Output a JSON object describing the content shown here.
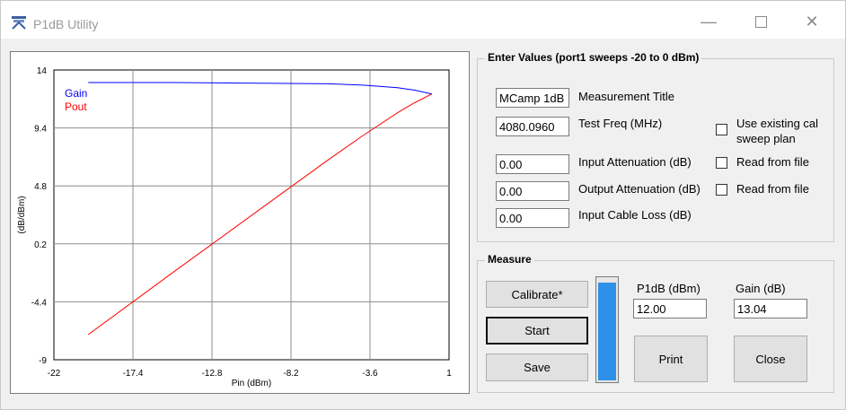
{
  "window": {
    "title": "P1dB Utility"
  },
  "chart_data": {
    "type": "line",
    "xlabel": "Pin (dBm)",
    "ylabel": "(dB/dBm)",
    "xlim": [
      -22,
      1
    ],
    "ylim": [
      -9,
      14
    ],
    "xticks": [
      "-22",
      "-17.4",
      "-12.8",
      "-8.2",
      "-3.6",
      "1"
    ],
    "yticks": [
      "14",
      "9.4",
      "4.8",
      "0.2",
      "-4.4",
      "-9"
    ],
    "grid": true,
    "legend_position": "top-left",
    "series": [
      {
        "name": "Gain",
        "color": "#0000ff",
        "x": [
          -20,
          -15,
          -10,
          -6,
          -4,
          -2,
          -1,
          0
        ],
        "y": [
          13.0,
          13.0,
          12.95,
          12.9,
          12.8,
          12.6,
          12.4,
          12.1
        ]
      },
      {
        "name": "Pout",
        "color": "#ff0000",
        "x": [
          -20,
          -15,
          -10,
          -6,
          -4,
          -2,
          -1,
          0
        ],
        "y": [
          -7.0,
          -2.0,
          2.95,
          6.9,
          8.8,
          10.6,
          11.4,
          12.1
        ]
      }
    ]
  },
  "enter_values": {
    "legend": "Enter Values (port1 sweeps -20 to 0 dBm)",
    "measurement_title": {
      "value": "MCamp 1dB",
      "label": "Measurement Title"
    },
    "test_freq": {
      "value": "4080.0960",
      "label": "Test Freq (MHz)"
    },
    "input_attenuation": {
      "value": "0.00",
      "label": "Input Attenuation (dB)"
    },
    "output_attenuation": {
      "value": "0.00",
      "label": "Output Attenuation (dB)"
    },
    "input_cable_loss": {
      "value": "0.00",
      "label": "Input Cable Loss (dB)"
    },
    "use_cal_label": "Use existing cal",
    "use_cal_label2": "sweep plan",
    "read_from_file_1": "Read from file",
    "read_from_file_2": "Read from file"
  },
  "measure": {
    "legend": "Measure",
    "calibrate_label": "Calibrate*",
    "start_label": "Start",
    "save_label": "Save",
    "progress_fraction": 0.97,
    "p1db_label": "P1dB (dBm)",
    "p1db_value": "12.00",
    "gain_label": "Gain (dB)",
    "gain_value": "13.04",
    "print_label": "Print",
    "close_label": "Close"
  }
}
